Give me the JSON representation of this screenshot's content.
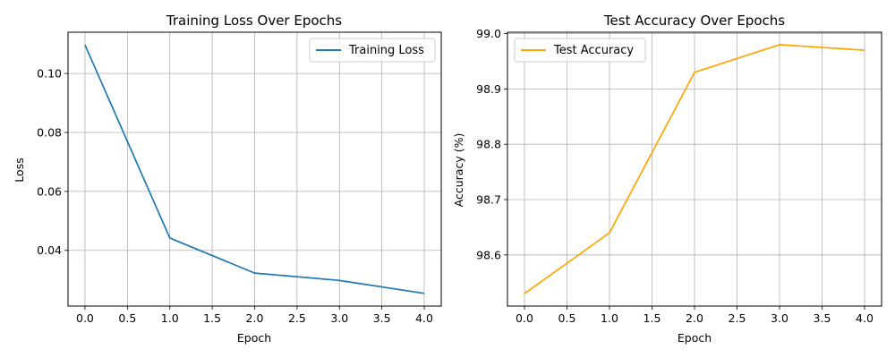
{
  "chart_data": [
    {
      "type": "line",
      "title": "Training Loss Over Epochs",
      "xlabel": "Epoch",
      "ylabel": "Loss",
      "x": [
        0,
        1,
        2,
        3,
        4
      ],
      "series": [
        {
          "name": "Training Loss",
          "color": "#1f77b4",
          "values": [
            0.1097,
            0.0442,
            0.0323,
            0.0298,
            0.0254
          ]
        }
      ],
      "xlim": [
        -0.2,
        4.2
      ],
      "ylim": [
        0.0211,
        0.114
      ],
      "xticks": [
        0.0,
        0.5,
        1.0,
        1.5,
        2.0,
        2.5,
        3.0,
        3.5,
        4.0
      ],
      "xtick_labels": [
        "0.0",
        "0.5",
        "1.0",
        "1.5",
        "2.0",
        "2.5",
        "3.0",
        "3.5",
        "4.0"
      ],
      "yticks": [
        0.04,
        0.06,
        0.08,
        0.1
      ],
      "ytick_labels": [
        "0.04",
        "0.06",
        "0.08",
        "0.10"
      ],
      "grid": true,
      "legend_position": "top-right"
    },
    {
      "type": "line",
      "title": "Test Accuracy Over Epochs",
      "xlabel": "Epoch",
      "ylabel": "Accuracy (%)",
      "x": [
        0,
        1,
        2,
        3,
        4
      ],
      "series": [
        {
          "name": "Test Accuracy",
          "color": "#ffa500",
          "values": [
            98.53,
            98.64,
            98.93,
            98.98,
            98.97
          ]
        }
      ],
      "xlim": [
        -0.2,
        4.2
      ],
      "ylim": [
        98.5075,
        99.0025
      ],
      "xticks": [
        0.0,
        0.5,
        1.0,
        1.5,
        2.0,
        2.5,
        3.0,
        3.5,
        4.0
      ],
      "xtick_labels": [
        "0.0",
        "0.5",
        "1.0",
        "1.5",
        "2.0",
        "2.5",
        "3.0",
        "3.5",
        "4.0"
      ],
      "yticks": [
        98.6,
        98.7,
        98.8,
        98.9,
        99.0
      ],
      "ytick_labels": [
        "98.6",
        "98.7",
        "98.8",
        "98.9",
        "99.0"
      ],
      "grid": true,
      "legend_position": "top-left"
    }
  ]
}
